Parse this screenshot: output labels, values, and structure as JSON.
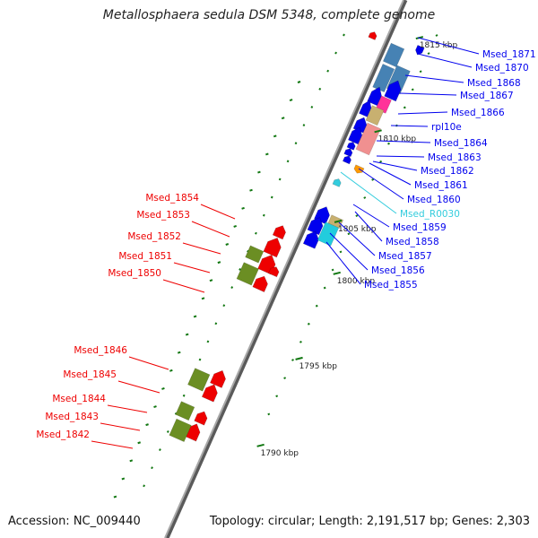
{
  "title": "Metallosphaera sedula DSM 5348, complete genome",
  "footer": {
    "accession": "Accession: NC_009440",
    "topology": "Topology: circular; Length: 2,191,517 bp; Genes: 2,303"
  },
  "colors": {
    "plus_strand_gene": "#0000ee",
    "minus_strand_gene": "#ee0000",
    "rna_gene": "#33ccdd",
    "cog_olive": "#6b8e23",
    "cog_orange": "#ff9900",
    "cog_pink": "#ff3399",
    "cog_tan": "#c8b070",
    "cog_salmon": "#f09090",
    "cog_cyan": "#22ccdd",
    "cog_steelblue": "#4682b4",
    "backbone": "#888888",
    "tick_green": "#117711"
  },
  "scale_labels": [
    "1815 kbp",
    "1810 kbp",
    "1805 kbp",
    "1800 kbp",
    "1795 kbp",
    "1790 kbp"
  ],
  "right_labels": [
    {
      "text": "Msed_1871",
      "color": "#0000ee"
    },
    {
      "text": "Msed_1870",
      "color": "#0000ee"
    },
    {
      "text": "Msed_1868",
      "color": "#0000ee"
    },
    {
      "text": "Msed_1867",
      "color": "#0000ee"
    },
    {
      "text": "Msed_1866",
      "color": "#0000ee"
    },
    {
      "text": "rpl10e",
      "color": "#0000ee"
    },
    {
      "text": "Msed_1864",
      "color": "#0000ee"
    },
    {
      "text": "Msed_1863",
      "color": "#0000ee"
    },
    {
      "text": "Msed_1862",
      "color": "#0000ee"
    },
    {
      "text": "Msed_1861",
      "color": "#0000ee"
    },
    {
      "text": "Msed_1860",
      "color": "#0000ee"
    },
    {
      "text": "Msed_R0030",
      "color": "#33ccdd"
    },
    {
      "text": "Msed_1859",
      "color": "#0000ee"
    },
    {
      "text": "Msed_1858",
      "color": "#0000ee"
    },
    {
      "text": "Msed_1857",
      "color": "#0000ee"
    },
    {
      "text": "Msed_1856",
      "color": "#0000ee"
    },
    {
      "text": "Msed_1855",
      "color": "#0000ee"
    }
  ],
  "left_labels": [
    {
      "text": "Msed_1854",
      "color": "#ee0000"
    },
    {
      "text": "Msed_1853",
      "color": "#ee0000"
    },
    {
      "text": "Msed_1852",
      "color": "#ee0000"
    },
    {
      "text": "Msed_1851",
      "color": "#ee0000"
    },
    {
      "text": "Msed_1850",
      "color": "#ee0000"
    },
    {
      "text": "Msed_1846",
      "color": "#ee0000"
    },
    {
      "text": "Msed_1845",
      "color": "#ee0000"
    },
    {
      "text": "Msed_1844",
      "color": "#ee0000"
    },
    {
      "text": "Msed_1843",
      "color": "#ee0000"
    },
    {
      "text": "Msed_1842",
      "color": "#ee0000"
    }
  ]
}
